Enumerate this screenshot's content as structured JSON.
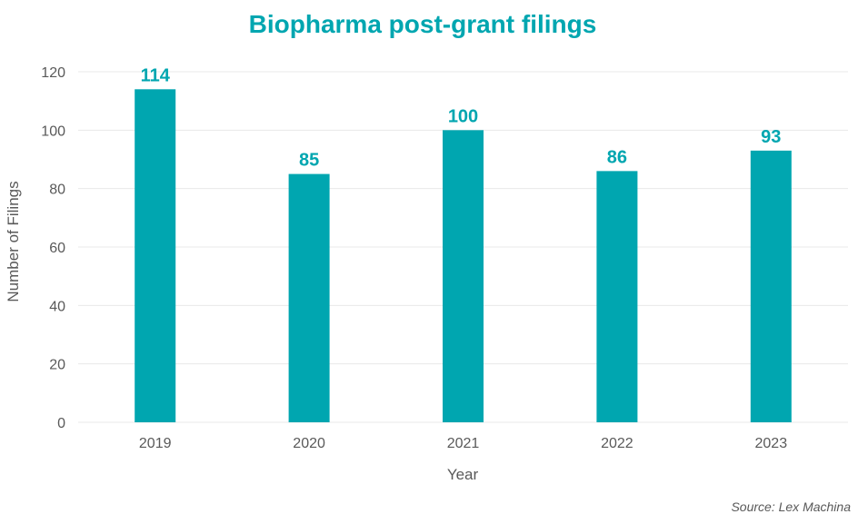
{
  "colors": {
    "bar": "#00a6b0",
    "title": "#00a6b0",
    "label": "#00a6b0",
    "grid": "#e8e8e8",
    "text": "#595959"
  },
  "chart_data": {
    "type": "bar",
    "title": "Biopharma post-grant filings",
    "xlabel": "Year",
    "ylabel": "Number of Filings",
    "categories": [
      "2019",
      "2020",
      "2021",
      "2022",
      "2023"
    ],
    "values": [
      114,
      85,
      100,
      86,
      93
    ],
    "data_labels": [
      "114",
      "85",
      "100",
      "86",
      "93"
    ],
    "ylim": [
      0,
      120
    ],
    "yticks": [
      0,
      20,
      40,
      60,
      80,
      100,
      120
    ],
    "ytick_labels": [
      "0",
      "20",
      "40",
      "60",
      "80",
      "100",
      "120"
    ],
    "grid": true,
    "legend": "none"
  },
  "source": "Source: Lex Machina"
}
